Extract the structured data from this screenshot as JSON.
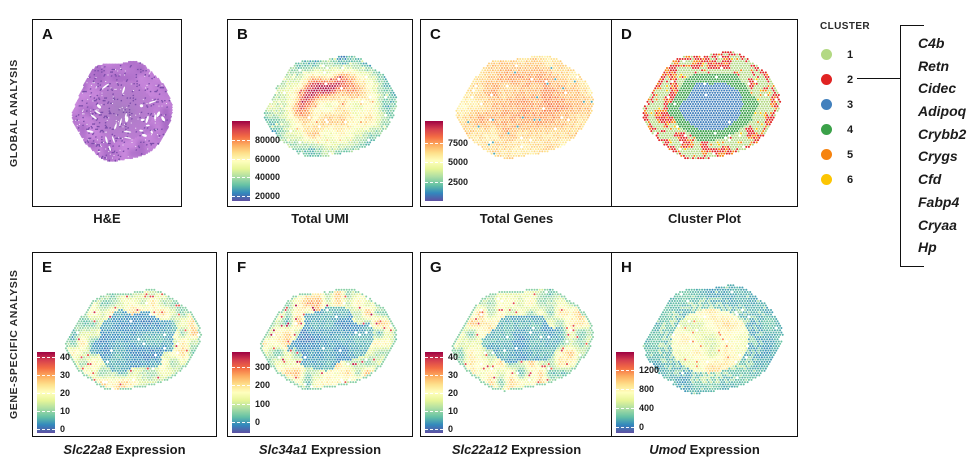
{
  "figure": {
    "row_labels": [
      "GLOBAL ANALYSIS",
      "GENE-SPECIFIC ANALYSIS"
    ]
  },
  "legend": {
    "title": "CLUSTER",
    "items": [
      {
        "id": "1",
        "color": "#b3d983"
      },
      {
        "id": "2",
        "color": "#e02322"
      },
      {
        "id": "3",
        "color": "#4280bd"
      },
      {
        "id": "4",
        "color": "#3ba149"
      },
      {
        "id": "5",
        "color": "#f6830f"
      },
      {
        "id": "6",
        "color": "#fcc502"
      }
    ],
    "linked_cluster": "2",
    "genes": [
      "C4b",
      "Retn",
      "Cidec",
      "Adipoq",
      "Crybb2",
      "Crygs",
      "Cfd",
      "Fabp4",
      "Cryaa",
      "Hp"
    ]
  },
  "chart_data": [
    {
      "panel": "A",
      "type": "image",
      "caption_italic": "",
      "caption_text": "H&E",
      "description": "H&E-stained kidney tissue section, purple elliptical tissue on white background"
    },
    {
      "panel": "B",
      "type": "spatial-spots",
      "caption_italic": "",
      "caption_text": "Total UMI",
      "colormap": "Spectral",
      "colorbar_ticks": [
        80000,
        60000,
        40000,
        20000
      ],
      "value_range": [
        15000,
        100000
      ],
      "spatial_pattern": "moderate UMI counts across section with a high-count band left of center; lower counts at tissue rim"
    },
    {
      "panel": "C",
      "type": "spatial-spots",
      "caption_italic": "",
      "caption_text": "Total Genes",
      "colormap": "Spectral",
      "colorbar_ticks": [
        7500,
        5000,
        2500
      ],
      "value_range": [
        0,
        10300
      ],
      "spatial_pattern": "high gene counts in the center, moderate toward the rim, rare low-count outlier spots"
    },
    {
      "panel": "D",
      "type": "spatial-clusters",
      "caption_italic": "",
      "caption_text": "Cluster Plot",
      "spatial_pattern": "cluster 3 core, cluster 4 inner ring, cluster 1 outer zone with clusters 2, 5 and 6 scattered at the rim"
    },
    {
      "panel": "E",
      "type": "spatial-spots",
      "caption_italic": "Slc22a8",
      "caption_text": " Expression",
      "colormap": "Spectral",
      "colorbar_ticks": [
        40,
        30,
        20,
        10,
        0
      ],
      "value_range": [
        -2.5,
        42.5
      ],
      "spatial_pattern": "low expression in central core, patchy moderate-to-high expression in outer ring"
    },
    {
      "panel": "F",
      "type": "spatial-spots",
      "caption_italic": "Slc34a1",
      "caption_text": " Expression",
      "colormap": "Spectral",
      "colorbar_ticks": [
        300,
        200,
        100,
        0
      ],
      "value_range": [
        -60,
        380
      ],
      "spatial_pattern": "low expression in central core, patchy moderate-to-high expression in outer ring"
    },
    {
      "panel": "G",
      "type": "spatial-spots",
      "caption_italic": "Slc22a12",
      "caption_text": " Expression",
      "colormap": "Spectral",
      "colorbar_ticks": [
        40,
        30,
        20,
        10,
        0
      ],
      "value_range": [
        -2.5,
        42.5
      ],
      "spatial_pattern": "low expression in smaller central core, broad patchy expression in surrounding ring"
    },
    {
      "panel": "H",
      "type": "spatial-spots",
      "caption_italic": "Umod",
      "caption_text": " Expression",
      "colormap": "Spectral",
      "colorbar_ticks": [
        1200,
        800,
        400,
        0
      ],
      "value_range": [
        -130,
        1575
      ],
      "spatial_pattern": "high expression in center-left region, low expression toward the tissue periphery"
    }
  ]
}
